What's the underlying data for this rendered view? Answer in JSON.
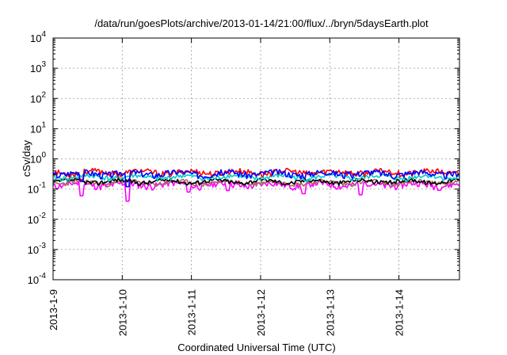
{
  "chart_data": {
    "type": "line",
    "title": "/data/run/goesPlots/archive/2013-01-14/21:00/flux/../bryn/5daysEarth.plot",
    "xlabel": "Coordinated Universal Time (UTC)",
    "ylabel": "cSv/day",
    "yscale": "log",
    "ylim": [
      0.0001,
      10000
    ],
    "xlim": [
      "2013-01-09",
      "2013-01-14 21:00"
    ],
    "x_ticks": [
      "2013-1-9",
      "2013-1-10",
      "2013-1-11",
      "2013-1-12",
      "2013-1-13",
      "2013-1-14"
    ],
    "y_ticks": [
      {
        "base": "10",
        "exp": "-4",
        "value": 0.0001
      },
      {
        "base": "10",
        "exp": "-3",
        "value": 0.001
      },
      {
        "base": "10",
        "exp": "-2",
        "value": 0.01
      },
      {
        "base": "10",
        "exp": "-1",
        "value": 0.1
      },
      {
        "base": "10",
        "exp": "0",
        "value": 1
      },
      {
        "base": "10",
        "exp": "1",
        "value": 10
      },
      {
        "base": "10",
        "exp": "2",
        "value": 100
      },
      {
        "base": "10",
        "exp": "3",
        "value": 1000
      },
      {
        "base": "10",
        "exp": "4",
        "value": 10000
      }
    ],
    "grid": true,
    "series": [
      {
        "color": "#ff00ff",
        "base": 0.14,
        "amp": 0.3,
        "seed": 11,
        "dips": [
          {
            "day": 1.07,
            "v": 0.04
          },
          {
            "day": 0.42,
            "v": 0.06
          },
          {
            "day": 3.62,
            "v": 0.07
          },
          {
            "day": 4.45,
            "v": 0.065
          },
          {
            "day": 2.52,
            "v": 0.09
          },
          {
            "day": 1.95,
            "v": 0.08
          }
        ]
      },
      {
        "color": "#aa6666",
        "base": 0.165,
        "amp": 0.22,
        "seed": 23,
        "dips": []
      },
      {
        "color": "#000000",
        "base": 0.18,
        "amp": 0.2,
        "seed": 37,
        "dips": []
      },
      {
        "color": "#00cccc",
        "base": 0.25,
        "amp": 0.22,
        "seed": 41,
        "dips": []
      },
      {
        "color": "#ff0000",
        "base": 0.36,
        "amp": 0.28,
        "seed": 53,
        "dips": [
          {
            "day": 0.42,
            "v": 0.2
          }
        ]
      },
      {
        "color": "#0000ff",
        "base": 0.33,
        "amp": 0.3,
        "seed": 67,
        "dips": [
          {
            "day": 0.42,
            "v": 0.18
          },
          {
            "day": 1.07,
            "v": 0.12
          }
        ]
      }
    ]
  }
}
